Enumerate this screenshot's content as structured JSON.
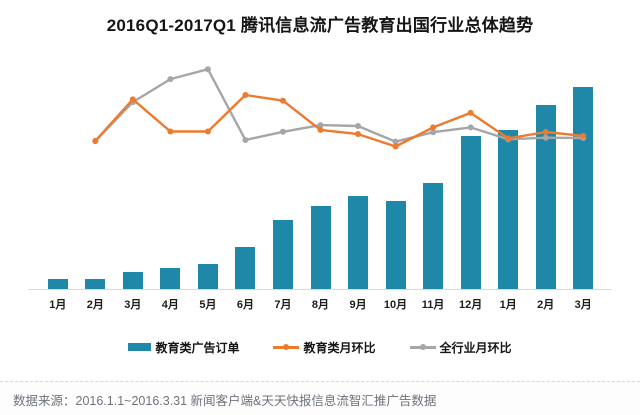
{
  "title": "2016Q1-2017Q1 腾讯信息流广告教育出国行业总体趋势",
  "footer": {
    "source_text": "数据来源：2016.1.1~2016.3.31 新闻客户端&天天快报信息流智汇推广告数据"
  },
  "colors": {
    "bar": "#1f87a8",
    "line_edu_mom": "#ed7a2f",
    "line_industry_mom": "#a6a6a6",
    "axis_line": "#d9d9d9",
    "footer_text": "#6e737b"
  },
  "legend": [
    {
      "label": "教育类广告订单",
      "marker": "bar-swatch",
      "color": "#1f87a8"
    },
    {
      "label": "教育类月环比",
      "marker": "line-dot",
      "color": "#ed7a2f"
    },
    {
      "label": "全行业月环比",
      "marker": "line-dot",
      "color": "#a6a6a6"
    }
  ],
  "chart_data": {
    "type": "bar",
    "combo": "bar+line",
    "title": "2016Q1-2017Q1 腾讯信息流广告教育出国行业总体趋势",
    "categories": [
      "1月",
      "2月",
      "3月",
      "4月",
      "5月",
      "6月",
      "7月",
      "8月",
      "9月",
      "10月",
      "11月",
      "12月",
      "1月",
      "2月",
      "3月"
    ],
    "series": [
      {
        "name": "教育类广告订单",
        "type": "bar",
        "color": "#1f87a8",
        "values": [
          4.8,
          4.8,
          8.0,
          9.6,
          11.3,
          18.5,
          30.4,
          36.7,
          41.0,
          38.8,
          46.7,
          67.0,
          69.6,
          80.4,
          88.4
        ]
      },
      {
        "name": "教育类月环比",
        "type": "line",
        "color": "#ed7a2f",
        "values": [
          null,
          64.8,
          82.9,
          68.9,
          68.9,
          84.8,
          82.3,
          69.6,
          67.8,
          62.4,
          70.7,
          77.0,
          65.9,
          68.7,
          67.0
        ]
      },
      {
        "name": "全行业月环比",
        "type": "line",
        "color": "#a6a6a6",
        "values": [
          null,
          64.8,
          81.7,
          91.7,
          96.0,
          65.2,
          68.8,
          71.7,
          71.3,
          64.5,
          68.6,
          70.7,
          65.5,
          66.2,
          66.1
        ]
      }
    ],
    "xlabel": "",
    "ylabel": "",
    "ylim": [
      0,
      100
    ],
    "grid": false,
    "y_axis_visible": false,
    "legend_position": "bottom"
  }
}
